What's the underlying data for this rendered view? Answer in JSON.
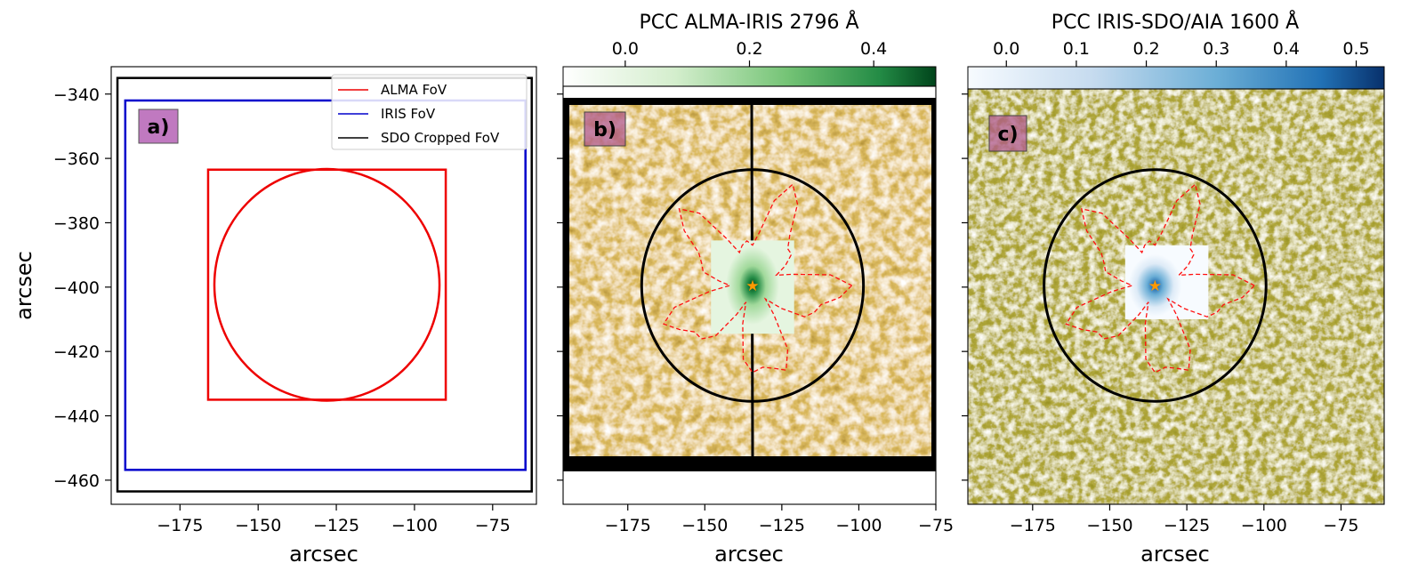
{
  "chart_data": [
    {
      "panel_label": "a)",
      "type": "line",
      "xlabel": "arcsec",
      "ylabel": "arcsec",
      "xlim": [
        -197,
        -61
      ],
      "ylim": [
        -467.5,
        -331.5
      ],
      "xticks": [
        -175,
        -150,
        -125,
        -100,
        -75
      ],
      "yticks": [
        -340,
        -360,
        -380,
        -400,
        -420,
        -440,
        -460
      ],
      "xtick_labels": [
        "−175",
        "−150",
        "−125",
        "−100",
        "−75"
      ],
      "ytick_labels": [
        "−340",
        "−360",
        "−380",
        "−400",
        "−420",
        "−440",
        "−460"
      ],
      "legend_position": "top-right",
      "series": [
        {
          "name": "ALMA FoV",
          "color": "#ee0000",
          "shapes": [
            {
              "kind": "rect",
              "x": [
                -166,
                -90
              ],
              "y": [
                -435,
                -363.5
              ]
            },
            {
              "kind": "circle",
              "center": [
                -128,
                -399.3
              ],
              "radius": 36
            }
          ]
        },
        {
          "name": "IRIS FoV",
          "color": "#0000cc",
          "shapes": [
            {
              "kind": "rect",
              "x": [
                -192.5,
                -64.5
              ],
              "y": [
                -456.8,
                -342
              ]
            }
          ]
        },
        {
          "name": "SDO Cropped FoV",
          "color": "#000000",
          "shapes": [
            {
              "kind": "rect",
              "x": [
                -195,
                -62.5
              ],
              "y": [
                -463.5,
                -335
              ]
            }
          ]
        }
      ]
    },
    {
      "panel_label": "b)",
      "type": "heatmap",
      "xlabel": "arcsec",
      "xlim": [
        -196,
        -75
      ],
      "ylim": [
        -467.5,
        -331.5
      ],
      "xticks": [
        -175,
        -150,
        -125,
        -100,
        -75
      ],
      "xtick_labels": [
        "−175",
        "−150",
        "−125",
        "−100",
        "−75"
      ],
      "colorbar": {
        "label": "PCC ALMA-IRIS 2796 Å",
        "range": [
          -0.1,
          0.5
        ],
        "ticks": [
          0.0,
          0.2,
          0.4
        ],
        "tick_labels": [
          "0.0",
          "0.2",
          "0.4"
        ],
        "colormap": "Greens"
      },
      "background_colormap": "brown-white",
      "alma_circle": {
        "center": [
          -134.5,
          -399.5
        ],
        "radius": 36
      },
      "pcc_map": {
        "x": [
          -148,
          -121
        ],
        "y": [
          -414.5,
          -385.5
        ]
      },
      "peak_marker": {
        "x": -134.5,
        "y": -399.5,
        "color": "#ff9900"
      }
    },
    {
      "panel_label": "c)",
      "type": "heatmap",
      "xlabel": "arcsec",
      "xlim": [
        -196,
        -61
      ],
      "ylim": [
        -467.5,
        -331.5
      ],
      "xticks": [
        -175,
        -150,
        -125,
        -100,
        -75
      ],
      "xtick_labels": [
        "−175",
        "−150",
        "−125",
        "−100",
        "−75"
      ],
      "colorbar": {
        "label": "PCC IRIS-SDO/AIA 1600 Å",
        "range": [
          -0.055,
          0.54
        ],
        "ticks": [
          0.0,
          0.1,
          0.2,
          0.3,
          0.4,
          0.5
        ],
        "tick_labels": [
          "0.0",
          "0.1",
          "0.2",
          "0.3",
          "0.4",
          "0.5"
        ],
        "colormap": "Blues"
      },
      "background_colormap": "olive-white",
      "alma_circle": {
        "center": [
          -135.3,
          -399.5
        ],
        "radius": 36
      },
      "pcc_map": {
        "x": [
          -145,
          -118
        ],
        "y": [
          -410,
          -387
        ]
      },
      "peak_marker": {
        "x": -135.3,
        "y": -399.5,
        "color": "#ff9900"
      }
    }
  ]
}
